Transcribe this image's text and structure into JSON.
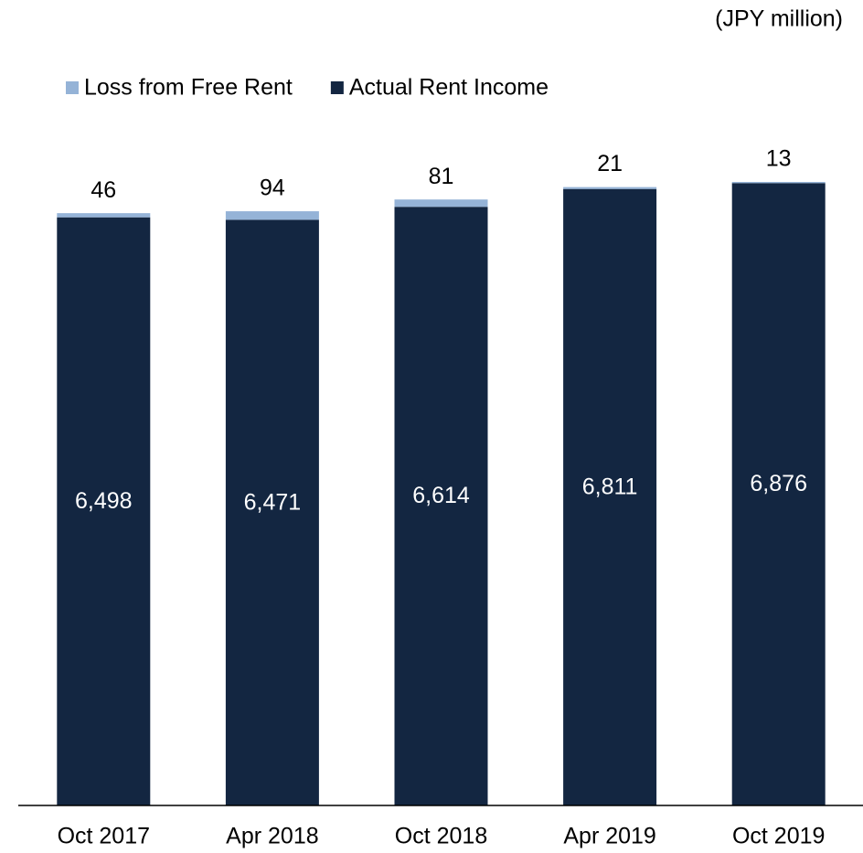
{
  "chart_data": {
    "type": "stacked_bar",
    "unit_label": "(JPY million)",
    "categories": [
      "Oct 2017",
      "Apr 2018",
      "Oct 2018",
      "Apr 2019",
      "Oct 2019"
    ],
    "series": [
      {
        "name": "Loss from Free Rent",
        "color": "#95b3d7",
        "values": [
          46,
          94,
          81,
          21,
          13
        ]
      },
      {
        "name": "Actual Rent Income",
        "color": "#132641",
        "values": [
          6498,
          6471,
          6614,
          6811,
          6876
        ],
        "value_labels": [
          "6,498",
          "6,471",
          "6,614",
          "6,811",
          "6,876"
        ]
      }
    ],
    "ylim": [
      0,
      8000
    ],
    "legend": "top-left"
  }
}
